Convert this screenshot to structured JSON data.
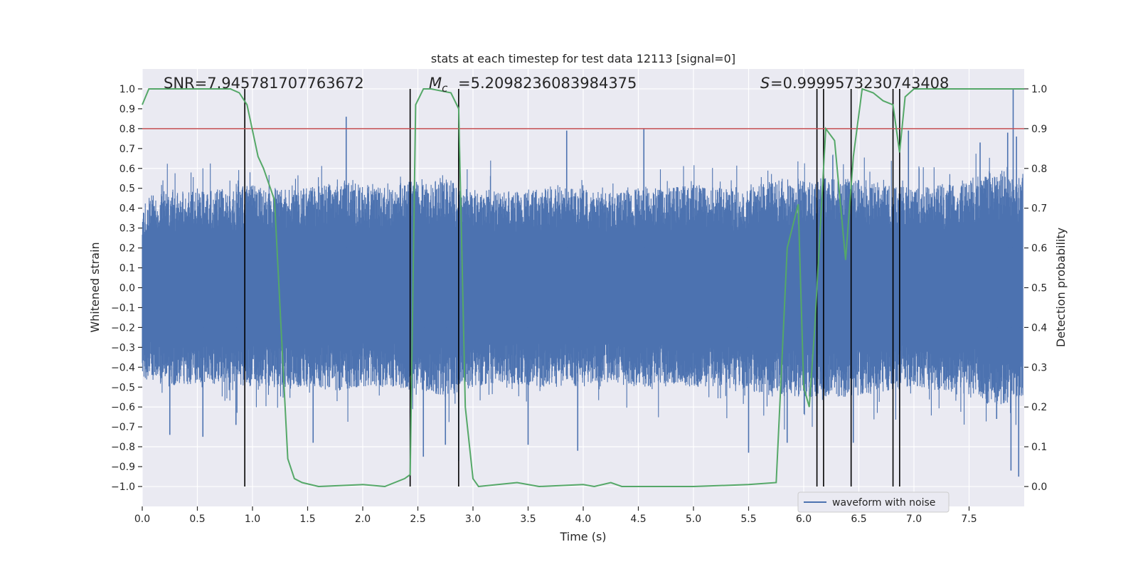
{
  "chart_data": {
    "type": "line",
    "title": "stats at each timestep for test data 12113 [signal=0]",
    "xlabel": "Time (s)",
    "ylabel": "Whitened strain",
    "ylabel_right": "Detection probability",
    "xlim": [
      0.0,
      8.0
    ],
    "ylim": [
      -1.1,
      1.1
    ],
    "ylim_right": [
      -0.05,
      1.05
    ],
    "grid": true,
    "x_ticks": [
      0.0,
      0.5,
      1.0,
      1.5,
      2.0,
      2.5,
      3.0,
      3.5,
      4.0,
      4.5,
      5.0,
      5.5,
      6.0,
      6.5,
      7.0,
      7.5
    ],
    "y_ticks": [
      1.0,
      0.9,
      0.8,
      0.7,
      0.6,
      0.5,
      0.4,
      0.3,
      0.2,
      0.1,
      0.0,
      -0.1,
      -0.2,
      -0.3,
      -0.4,
      -0.5,
      -0.6,
      -0.7,
      -0.8,
      -0.9,
      -1.0
    ],
    "y_right_ticks": [
      0.0,
      0.1,
      0.2,
      0.3,
      0.4,
      0.5,
      0.6,
      0.7,
      0.8,
      0.9,
      1.0
    ],
    "annotations": {
      "snr": "SNR=7.945781707763672",
      "mc": "=5.2098236083984375",
      "spin": "=0.9999573230743408"
    },
    "threshold": 0.9,
    "markers": [
      0.93,
      2.43,
      2.87,
      6.12,
      6.18,
      6.43,
      6.81,
      6.87
    ],
    "legend": [
      {
        "label": "waveform with noise",
        "color": "#4c72b0"
      }
    ],
    "legend_position": "bottom-right",
    "series": [
      {
        "name": "waveform with noise",
        "axis": "left",
        "color": "#4c72b0",
        "envelope": {
          "x": [
            0.0,
            0.25,
            0.5,
            0.75,
            1.0,
            1.25,
            1.5,
            1.75,
            2.0,
            2.25,
            2.5,
            2.75,
            3.0,
            3.25,
            3.5,
            3.75,
            4.0,
            4.25,
            4.5,
            4.75,
            5.0,
            5.25,
            5.5,
            5.75,
            6.0,
            6.25,
            6.5,
            6.75,
            7.0,
            7.25,
            7.5,
            7.75,
            8.0
          ],
          "upper": [
            0.45,
            0.5,
            0.48,
            0.5,
            0.52,
            0.5,
            0.5,
            0.55,
            0.52,
            0.5,
            0.55,
            0.55,
            0.5,
            0.48,
            0.5,
            0.52,
            0.5,
            0.48,
            0.5,
            0.5,
            0.52,
            0.5,
            0.52,
            0.55,
            0.55,
            0.55,
            0.55,
            0.52,
            0.5,
            0.52,
            0.55,
            0.6,
            0.55
          ],
          "lower": [
            -0.45,
            -0.5,
            -0.48,
            -0.5,
            -0.5,
            -0.5,
            -0.5,
            -0.52,
            -0.5,
            -0.5,
            -0.52,
            -0.55,
            -0.5,
            -0.48,
            -0.5,
            -0.5,
            -0.5,
            -0.48,
            -0.5,
            -0.5,
            -0.5,
            -0.5,
            -0.52,
            -0.55,
            -0.55,
            -0.55,
            -0.55,
            -0.52,
            -0.5,
            -0.52,
            -0.55,
            -0.6,
            -0.55
          ]
        },
        "spikes": [
          [
            0.25,
            -0.74
          ],
          [
            0.55,
            -0.75
          ],
          [
            0.85,
            -0.69
          ],
          [
            1.85,
            0.86
          ],
          [
            1.55,
            -0.78
          ],
          [
            2.55,
            -0.85
          ],
          [
            2.75,
            -0.79
          ],
          [
            2.87,
            -0.87
          ],
          [
            3.5,
            -0.79
          ],
          [
            3.85,
            0.79
          ],
          [
            3.95,
            -0.82
          ],
          [
            4.55,
            0.8
          ],
          [
            5.5,
            -0.83
          ],
          [
            5.85,
            -0.78
          ],
          [
            6.45,
            -0.78
          ],
          [
            6.95,
            0.79
          ],
          [
            7.6,
            0.73
          ],
          [
            7.75,
            -0.66
          ],
          [
            7.85,
            0.78
          ],
          [
            7.88,
            -0.92
          ],
          [
            7.9,
            1.0
          ],
          [
            7.95,
            -0.95
          ],
          [
            7.93,
            0.76
          ]
        ]
      },
      {
        "name": "detection probability",
        "axis": "right",
        "color": "#55a868",
        "x": [
          0.0,
          0.06,
          0.3,
          0.6,
          0.8,
          0.88,
          0.95,
          1.05,
          1.1,
          1.2,
          1.32,
          1.38,
          1.45,
          1.6,
          2.0,
          2.2,
          2.38,
          2.43,
          2.48,
          2.55,
          2.62,
          2.8,
          2.87,
          2.93,
          3.0,
          3.05,
          3.4,
          3.6,
          4.0,
          4.1,
          4.25,
          4.35,
          4.6,
          5.0,
          5.5,
          5.75,
          5.85,
          5.95,
          6.0,
          6.05,
          6.1,
          6.2,
          6.28,
          6.38,
          6.45,
          6.53,
          6.63,
          6.72,
          6.81,
          6.87,
          6.92,
          7.0,
          7.3,
          7.6,
          7.7,
          8.0
        ],
        "y": [
          0.96,
          1.0,
          1.0,
          1.0,
          1.0,
          0.99,
          0.96,
          0.83,
          0.8,
          0.72,
          0.07,
          0.02,
          0.01,
          0.0,
          0.005,
          0.0,
          0.02,
          0.03,
          0.96,
          1.0,
          1.0,
          0.99,
          0.95,
          0.2,
          0.02,
          0.0,
          0.01,
          0.0,
          0.005,
          0.0,
          0.01,
          0.0,
          0.0,
          0.0,
          0.005,
          0.01,
          0.6,
          0.71,
          0.25,
          0.2,
          0.4,
          0.9,
          0.87,
          0.57,
          0.83,
          1.0,
          0.99,
          0.97,
          0.96,
          0.84,
          0.98,
          1.0,
          1.0,
          1.0,
          1.0,
          1.0
        ]
      }
    ]
  }
}
